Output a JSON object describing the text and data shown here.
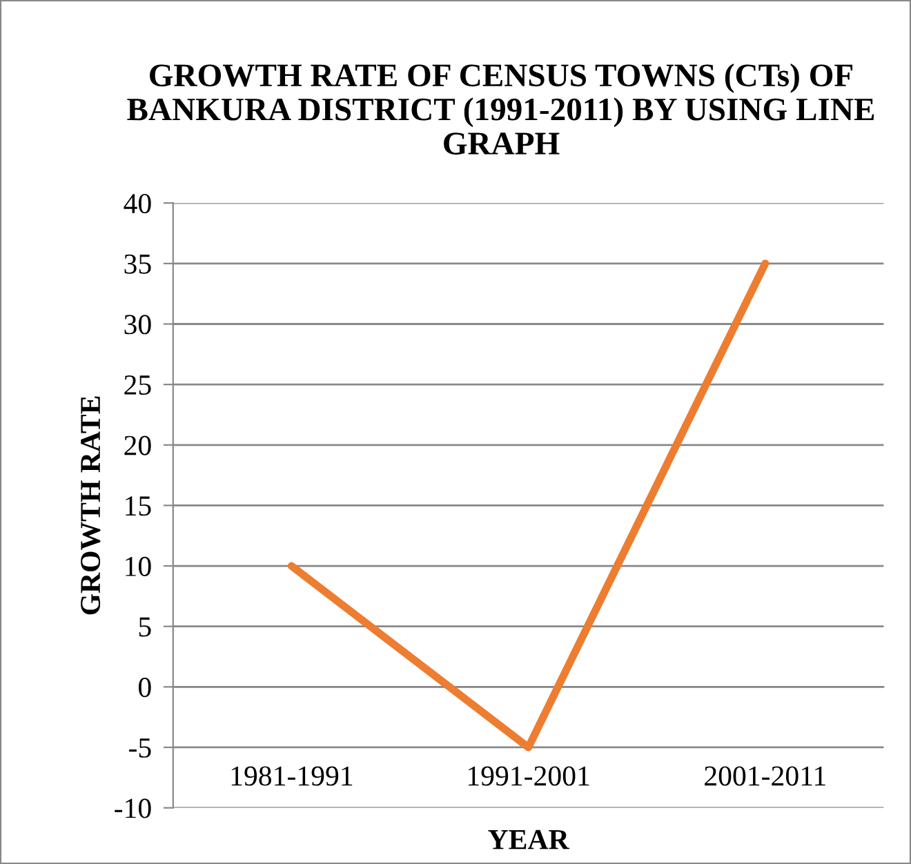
{
  "chart_data": {
    "type": "line",
    "title": "GROWTH RATE OF CENSUS TOWNS (CTs) OF BANKURA DISTRICT (1991-2011) BY USING LINE GRAPH",
    "xlabel": "YEAR",
    "ylabel": "GROWTH RATE",
    "categories": [
      "1981-1991",
      "1991-2001",
      "2001-2011"
    ],
    "series": [
      {
        "color": "#ed7d31",
        "values": [
          10,
          -5,
          35
        ]
      }
    ],
    "ylim": [
      -10,
      40
    ],
    "yticks": [
      -10,
      -5,
      0,
      5,
      10,
      15,
      20,
      25,
      30,
      35,
      40
    ],
    "grid": "y",
    "legend": false,
    "marker": "none",
    "line_style": "solid"
  }
}
